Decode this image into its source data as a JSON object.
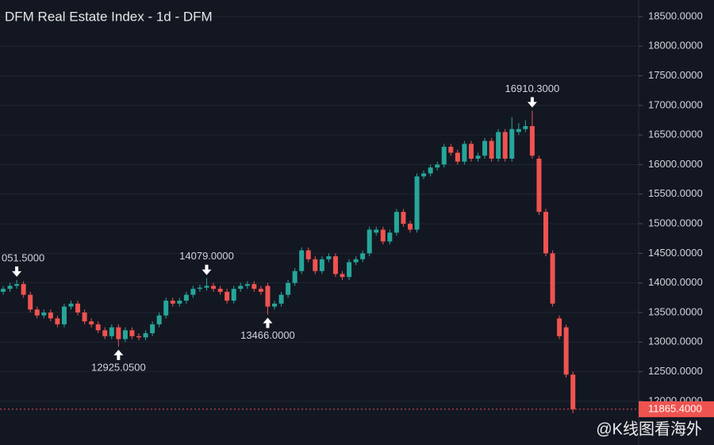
{
  "chart_data": {
    "type": "candlestick",
    "title": "DFM Real Estate Index - 1d - DFM",
    "open": [
      13850,
      13900,
      13950,
      13980,
      13800,
      13550,
      13450,
      13500,
      13400,
      13300,
      13600,
      13650,
      13500,
      13350,
      13300,
      13200,
      13100,
      13250,
      13050,
      13200,
      13100,
      13080,
      13150,
      13300,
      13450,
      13700,
      13650,
      13700,
      13800,
      13900,
      13920,
      13950,
      13900,
      13850,
      13700,
      13900,
      13950,
      13980,
      13900,
      13950,
      13600,
      13650,
      13800,
      14000,
      14200,
      14550,
      14400,
      14200,
      14400,
      14450,
      14150,
      14100,
      14350,
      14400,
      14500,
      14850,
      14900,
      14700,
      14850,
      15200,
      15000,
      14900,
      15800,
      15850,
      15950,
      16000,
      16300,
      16200,
      16050,
      16350,
      16100,
      16150,
      16400,
      16100,
      16550,
      16100,
      16550,
      16600,
      16650,
      16100,
      15200,
      14500,
      13400,
      13250,
      12450
    ],
    "high": [
      13950,
      14000,
      14051.5,
      14030,
      13850,
      13600,
      13550,
      13550,
      13450,
      13650,
      13700,
      13700,
      13550,
      13400,
      13350,
      13250,
      13300,
      13300,
      13250,
      13250,
      13150,
      13200,
      13350,
      13500,
      13750,
      13750,
      13750,
      13850,
      13950,
      13970,
      14079,
      14000,
      13950,
      13900,
      13950,
      14000,
      14030,
      14030,
      13950,
      14000,
      13700,
      13850,
      14050,
      14250,
      14600,
      14600,
      14450,
      14450,
      14500,
      14500,
      14200,
      14400,
      14450,
      14550,
      14950,
      14950,
      14950,
      14900,
      15250,
      15250,
      15050,
      15850,
      15900,
      16000,
      16050,
      16350,
      16350,
      16250,
      16400,
      16400,
      16200,
      16450,
      16450,
      16600,
      16600,
      16800,
      16700,
      16750,
      16910.3,
      16150,
      15250,
      14550,
      13450,
      13300,
      12500
    ],
    "low": [
      13800,
      13850,
      13900,
      13750,
      13500,
      13400,
      13400,
      13350,
      13250,
      13250,
      13550,
      13450,
      13300,
      13250,
      13150,
      13050,
      13050,
      12925.05,
      13000,
      13050,
      13030,
      13030,
      13100,
      13250,
      13400,
      13600,
      13600,
      13650,
      13750,
      13850,
      13870,
      13850,
      13800,
      13650,
      13650,
      13850,
      13900,
      13850,
      13800,
      13466,
      13550,
      13600,
      13750,
      13950,
      14150,
      14350,
      14150,
      14150,
      14350,
      14100,
      14050,
      14050,
      14300,
      14350,
      14450,
      14800,
      14650,
      14650,
      14800,
      14950,
      14850,
      14850,
      15750,
      15800,
      15900,
      15950,
      16150,
      16000,
      16000,
      16050,
      16050,
      16100,
      16050,
      16050,
      16050,
      16050,
      16500,
      16550,
      16100,
      15150,
      14450,
      13600,
      13050,
      12400,
      11800
    ],
    "close": [
      13900,
      13950,
      13980,
      13800,
      13550,
      13450,
      13500,
      13400,
      13300,
      13600,
      13650,
      13500,
      13350,
      13300,
      13200,
      13100,
      13250,
      13050,
      13200,
      13100,
      13080,
      13150,
      13300,
      13450,
      13700,
      13650,
      13700,
      13800,
      13900,
      13920,
      13950,
      13900,
      13850,
      13700,
      13900,
      13950,
      13980,
      13900,
      13850,
      13600,
      13650,
      13800,
      14000,
      14200,
      14550,
      14400,
      14200,
      14400,
      14450,
      14150,
      14100,
      14350,
      14400,
      14500,
      14900,
      14900,
      14700,
      14850,
      15200,
      15000,
      14900,
      15800,
      15850,
      15950,
      16000,
      16300,
      16200,
      16050,
      16350,
      16100,
      16150,
      16400,
      16100,
      16550,
      16100,
      16600,
      16600,
      16650,
      16150,
      15200,
      14500,
      13650,
      13100,
      12450,
      11865.4
    ],
    "up_color": "#26a69a",
    "down_color": "#ef5350",
    "ylim": [
      11261,
      18781
    ],
    "yticks": [
      {
        "value": 12000,
        "label": "12000.0000"
      },
      {
        "value": 12500,
        "label": "12500.0000"
      },
      {
        "value": 13000,
        "label": "13000.0000"
      },
      {
        "value": 13500,
        "label": "13500.0000"
      },
      {
        "value": 14000,
        "label": "14000.0000"
      },
      {
        "value": 14500,
        "label": "14500.0000"
      },
      {
        "value": 15000,
        "label": "15000.0000"
      },
      {
        "value": 15500,
        "label": "15500.0000"
      },
      {
        "value": 16000,
        "label": "16000.0000"
      },
      {
        "value": 16500,
        "label": "16500.0000"
      },
      {
        "value": 17000,
        "label": "17000.0000"
      },
      {
        "value": 17500,
        "label": "17500.0000"
      },
      {
        "value": 18000,
        "label": "18000.0000"
      },
      {
        "value": 18500,
        "label": "18500.0000"
      }
    ],
    "grid": true,
    "annotations": [
      {
        "value": 14051.5,
        "label": "051.5000"
      },
      {
        "value": 12925.05,
        "label": "12925.0500"
      },
      {
        "value": 14079,
        "label": "14079.0000"
      },
      {
        "value": 13466,
        "label": "13466.0000"
      },
      {
        "value": 16910.3,
        "label": "16910.3000"
      }
    ],
    "last_price": {
      "value": 11865.4,
      "label": "11865.4000"
    },
    "watermark": "@K线图看海外"
  }
}
